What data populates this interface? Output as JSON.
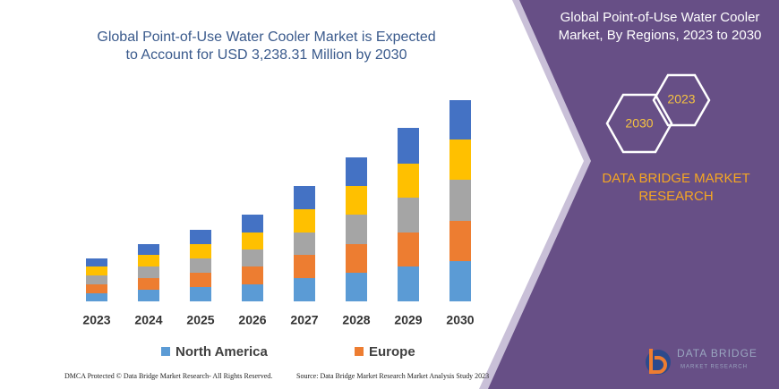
{
  "chart_data": {
    "type": "stacked-bar",
    "title": "Global Point-of-Use Water Cooler Market is Expected to Account for USD 3,238.31 Million by 2030",
    "categories": [
      "2023",
      "2024",
      "2025",
      "2026",
      "2027",
      "2028",
      "2029",
      "2030"
    ],
    "series": [
      {
        "name": "North America",
        "color": "#5b9bd5",
        "values": [
          9,
          13,
          16,
          19,
          26,
          32,
          39,
          45
        ]
      },
      {
        "name": "Europe",
        "color": "#ed7d31",
        "values": [
          10,
          13,
          16,
          20,
          26,
          32,
          38,
          45
        ]
      },
      {
        "color": "#a5a5a5",
        "values": [
          10,
          13,
          16,
          19,
          25,
          33,
          39,
          46
        ]
      },
      {
        "color": "#ffc000",
        "values": [
          10,
          13,
          16,
          19,
          26,
          32,
          38,
          45
        ]
      },
      {
        "color": "#4472c4",
        "values": [
          9,
          12,
          16,
          20,
          26,
          32,
          40,
          44
        ]
      }
    ],
    "ylim": [
      0,
      240
    ]
  },
  "panel": {
    "title": "Global Point-of-Use Water Cooler Market, By Regions, 2023 to 2030",
    "hexagons": [
      "2023",
      "2030"
    ],
    "brand": "DATA BRIDGE MARKET RESEARCH"
  },
  "logo": {
    "name": "DATA BRIDGE",
    "tagline": "MARKET RESEARCH"
  },
  "footer": {
    "left": "DMCA Protected © Data Bridge Market Research-  All Rights Reserved.",
    "right": "Source: Data Bridge Market Research  Market Analysis Study 2023"
  }
}
